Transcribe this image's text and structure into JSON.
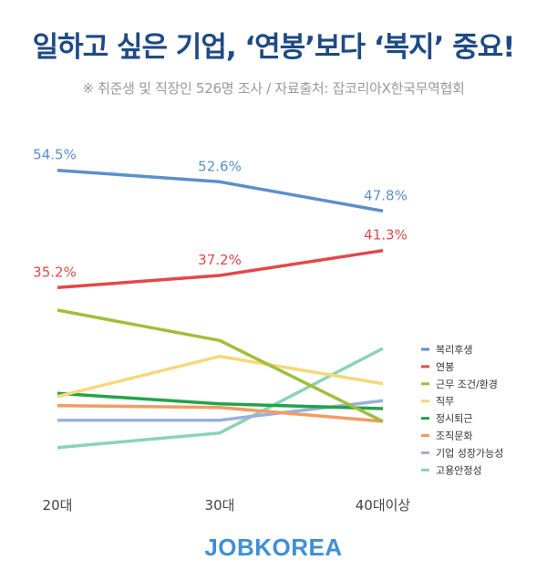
{
  "header": {
    "title": "일하고 싶은 기업, ‘연봉’보다 ‘복지’ 중요!",
    "subtitle": "※ 취준생 및 직장인 526명 조사 / 자료출처: 잡코리아X한국무역협회"
  },
  "footer": {
    "brand": "JOBKOREA"
  },
  "colors": {
    "title": "#1e4a84",
    "brand": "#3f8fd8"
  },
  "chart_data": {
    "type": "line",
    "categories": [
      "20대",
      "30대",
      "40대이상"
    ],
    "series": [
      {
        "name": "복리후생",
        "values": [
          54.5,
          52.6,
          47.8
        ],
        "labels": [
          "54.5%",
          "52.6%",
          "47.8%"
        ],
        "color": "#5b8fcb"
      },
      {
        "name": "연봉",
        "values": [
          35.2,
          37.2,
          41.3
        ],
        "labels": [
          "35.2%",
          "37.2%",
          "41.3%"
        ],
        "color": "#e4474a"
      },
      {
        "name": "근무 조건/환경",
        "values": [
          31.5,
          26.5,
          13.2
        ],
        "color": "#9fbf3a"
      },
      {
        "name": "직무",
        "values": [
          17.3,
          23.9,
          19.4
        ],
        "color": "#f7d77a"
      },
      {
        "name": "정시퇴근",
        "values": [
          17.8,
          16.1,
          15.3
        ],
        "color": "#22a34a"
      },
      {
        "name": "조직문화",
        "values": [
          15.8,
          15.5,
          13.2
        ],
        "color": "#f19c64"
      },
      {
        "name": "기업 성장가능성",
        "values": [
          13.4,
          13.4,
          16.6
        ],
        "color": "#9ab0dc"
      },
      {
        "name": "고용안정성",
        "values": [
          8.9,
          11.3,
          25.2
        ],
        "color": "#8bd3b6"
      }
    ],
    "ylim": [
      0,
      60
    ],
    "grid": false,
    "legend": "right",
    "xlabel": "",
    "ylabel": ""
  }
}
